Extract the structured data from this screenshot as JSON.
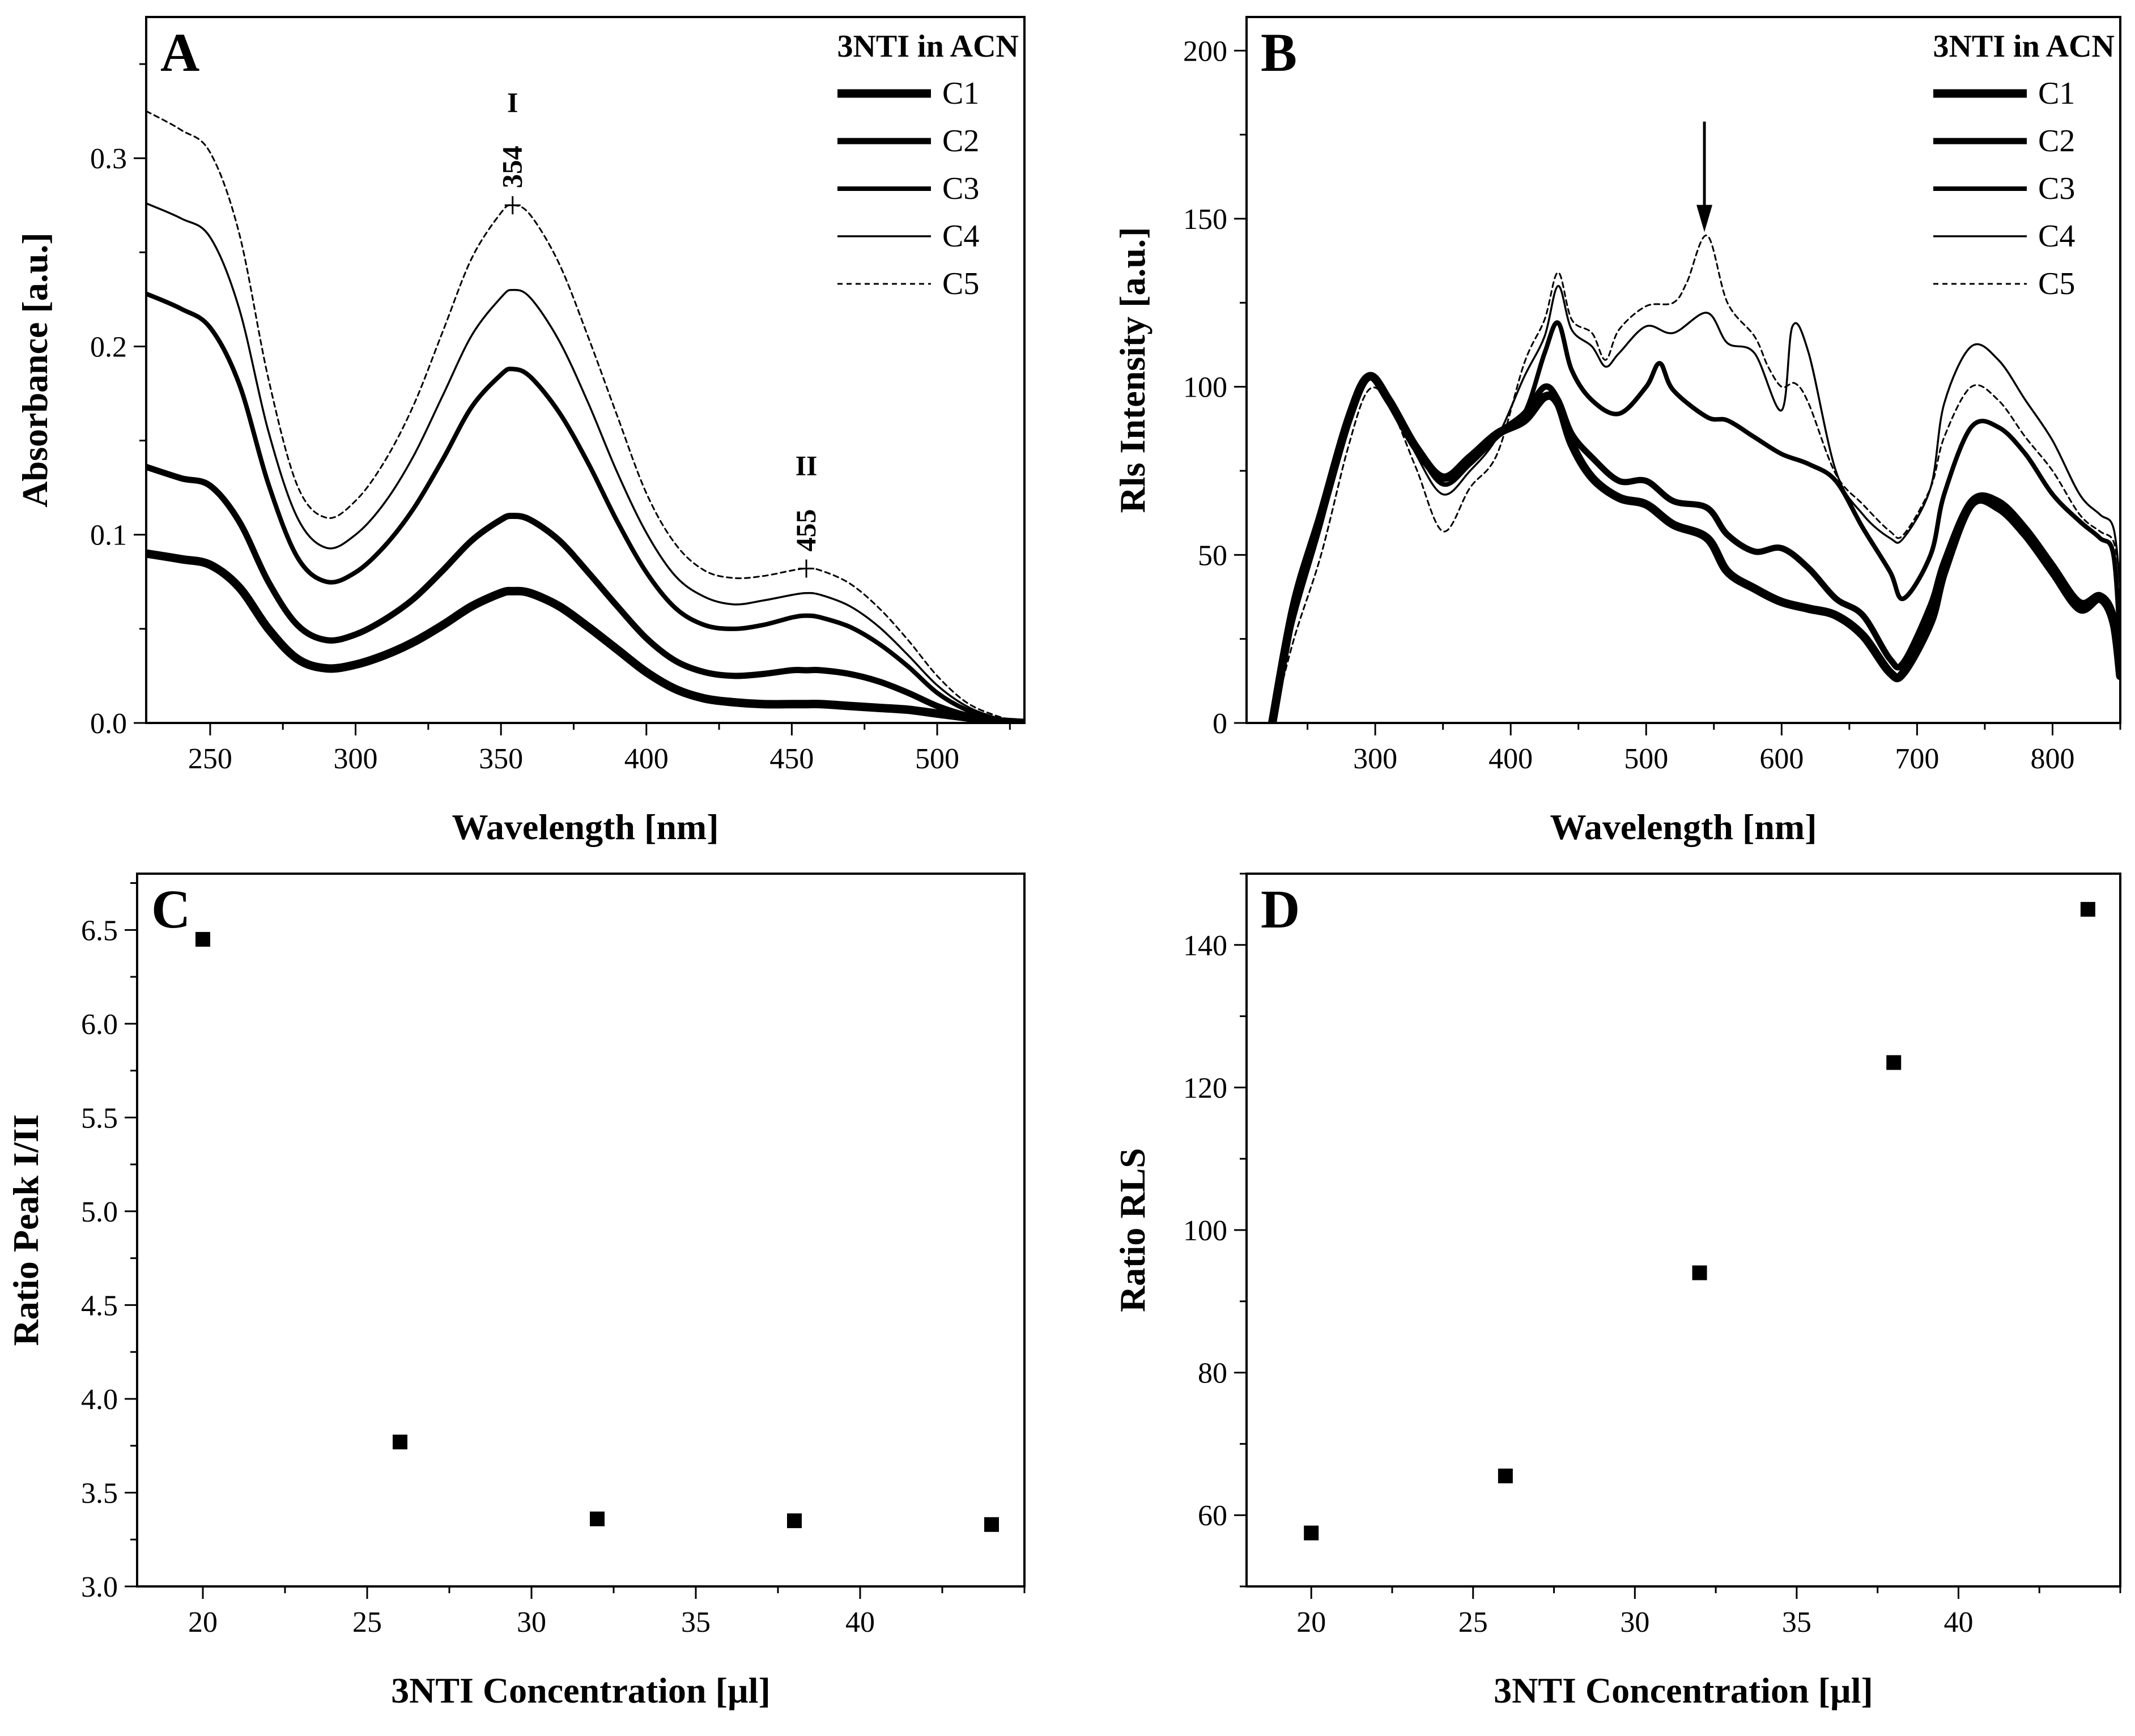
{
  "chart_data": [
    {
      "panel": "A",
      "type": "line",
      "xlabel": "Wavelength [nm]",
      "ylabel": "Absorbance [a.u.]",
      "xlim": [
        228,
        530
      ],
      "ylim": [
        0,
        0.375
      ],
      "xticks": [
        250,
        300,
        350,
        400,
        450,
        500
      ],
      "yticks": [
        0.0,
        0.1,
        0.2,
        0.3
      ],
      "ytick_labels": [
        "0.0",
        "0.1",
        "0.2",
        "0.3"
      ],
      "legend_title": "3NTI in ACN",
      "legend_position": "top-right",
      "series": [
        {
          "name": "C1",
          "x": [
            228,
            240,
            250,
            260,
            270,
            280,
            290,
            300,
            310,
            320,
            330,
            340,
            350,
            354,
            360,
            370,
            380,
            390,
            400,
            410,
            420,
            430,
            440,
            450,
            455,
            460,
            470,
            480,
            490,
            500,
            510,
            520,
            530
          ],
          "y": [
            0.09,
            0.087,
            0.084,
            0.072,
            0.05,
            0.034,
            0.029,
            0.031,
            0.036,
            0.043,
            0.052,
            0.062,
            0.069,
            0.07,
            0.069,
            0.062,
            0.051,
            0.039,
            0.027,
            0.018,
            0.013,
            0.011,
            0.01,
            0.01,
            0.01,
            0.01,
            0.009,
            0.008,
            0.007,
            0.005,
            0.003,
            0.001,
            0.0
          ]
        },
        {
          "name": "C2",
          "x": [
            228,
            240,
            250,
            260,
            270,
            280,
            290,
            300,
            310,
            320,
            330,
            340,
            350,
            354,
            360,
            370,
            380,
            390,
            400,
            410,
            420,
            430,
            440,
            450,
            455,
            460,
            470,
            480,
            490,
            500,
            510,
            520,
            530
          ],
          "y": [
            0.136,
            0.13,
            0.126,
            0.107,
            0.075,
            0.052,
            0.044,
            0.047,
            0.055,
            0.066,
            0.081,
            0.097,
            0.108,
            0.11,
            0.108,
            0.097,
            0.08,
            0.062,
            0.045,
            0.033,
            0.027,
            0.025,
            0.026,
            0.028,
            0.028,
            0.028,
            0.026,
            0.022,
            0.016,
            0.009,
            0.004,
            0.001,
            0.0
          ]
        },
        {
          "name": "C3",
          "x": [
            228,
            240,
            250,
            260,
            270,
            280,
            290,
            300,
            310,
            320,
            330,
            340,
            350,
            354,
            360,
            370,
            380,
            390,
            400,
            410,
            420,
            430,
            440,
            450,
            455,
            460,
            470,
            480,
            490,
            500,
            510,
            520,
            530
          ],
          "y": [
            0.228,
            0.22,
            0.21,
            0.18,
            0.127,
            0.088,
            0.075,
            0.08,
            0.094,
            0.114,
            0.14,
            0.168,
            0.185,
            0.188,
            0.184,
            0.165,
            0.138,
            0.107,
            0.08,
            0.061,
            0.052,
            0.05,
            0.052,
            0.056,
            0.057,
            0.056,
            0.051,
            0.042,
            0.03,
            0.016,
            0.007,
            0.002,
            0.0
          ]
        },
        {
          "name": "C4",
          "x": [
            228,
            240,
            250,
            260,
            270,
            280,
            290,
            300,
            310,
            320,
            330,
            340,
            350,
            354,
            360,
            370,
            380,
            390,
            400,
            410,
            420,
            430,
            440,
            450,
            455,
            460,
            470,
            480,
            490,
            500,
            510,
            520,
            530
          ],
          "y": [
            0.276,
            0.268,
            0.258,
            0.22,
            0.155,
            0.109,
            0.093,
            0.1,
            0.117,
            0.142,
            0.174,
            0.206,
            0.226,
            0.23,
            0.226,
            0.203,
            0.17,
            0.133,
            0.101,
            0.078,
            0.067,
            0.063,
            0.065,
            0.068,
            0.069,
            0.068,
            0.062,
            0.051,
            0.036,
            0.02,
            0.009,
            0.003,
            0.0
          ]
        },
        {
          "name": "C5",
          "x": [
            228,
            240,
            250,
            260,
            270,
            280,
            290,
            300,
            310,
            320,
            330,
            340,
            350,
            354,
            360,
            370,
            380,
            390,
            400,
            410,
            420,
            430,
            440,
            450,
            455,
            460,
            470,
            480,
            490,
            500,
            510,
            520,
            530
          ],
          "y": [
            0.325,
            0.315,
            0.303,
            0.26,
            0.183,
            0.126,
            0.109,
            0.118,
            0.139,
            0.169,
            0.208,
            0.247,
            0.271,
            0.275,
            0.27,
            0.244,
            0.205,
            0.163,
            0.122,
            0.095,
            0.081,
            0.077,
            0.078,
            0.081,
            0.082,
            0.081,
            0.074,
            0.061,
            0.044,
            0.025,
            0.011,
            0.004,
            0.0
          ]
        }
      ],
      "annotations": [
        {
          "label": "I",
          "value": "354",
          "x": 354,
          "y": 0.275
        },
        {
          "label": "II",
          "value": "455",
          "x": 455,
          "y": 0.082
        }
      ]
    },
    {
      "panel": "B",
      "type": "line",
      "xlabel": "Wavelength [nm]",
      "ylabel": "Rls Intensity [a.u.]",
      "xlim": [
        205,
        850
      ],
      "ylim": [
        0,
        210
      ],
      "xticks": [
        300,
        400,
        500,
        600,
        700,
        800
      ],
      "yticks": [
        0,
        50,
        100,
        150,
        200
      ],
      "ytick_labels": [
        "0",
        "50",
        "100",
        "150",
        "200"
      ],
      "legend_title": "3NTI in ACN",
      "legend_position": "top-right",
      "arrow_at_x": 543,
      "series": [
        {
          "name": "C1",
          "x": [
            224,
            240,
            260,
            280,
            295,
            310,
            330,
            350,
            370,
            390,
            410,
            425,
            435,
            445,
            460,
            480,
            500,
            520,
            545,
            560,
            580,
            600,
            620,
            640,
            660,
            680,
            690,
            710,
            720,
            740,
            760,
            780,
            800,
            820,
            835,
            845,
            850
          ],
          "y": [
            0,
            35,
            62,
            90,
            103,
            96,
            82,
            73,
            79,
            86,
            90,
            97,
            95,
            83,
            73,
            67,
            65,
            59,
            55,
            45,
            40,
            36,
            34,
            32,
            26,
            15,
            15,
            30,
            45,
            65,
            64,
            56,
            45,
            34,
            37,
            30,
            14
          ]
        },
        {
          "name": "C2",
          "x": [
            224,
            240,
            260,
            280,
            295,
            310,
            330,
            350,
            370,
            390,
            410,
            425,
            435,
            445,
            460,
            480,
            500,
            520,
            545,
            560,
            580,
            600,
            620,
            640,
            660,
            680,
            690,
            710,
            720,
            740,
            760,
            780,
            800,
            820,
            835,
            845,
            850
          ],
          "y": [
            0,
            35,
            62,
            90,
            103,
            96,
            82,
            73,
            79,
            86,
            92,
            100,
            96,
            86,
            79,
            72,
            72,
            66,
            64,
            56,
            51,
            52,
            46,
            37,
            32,
            19,
            18,
            35,
            48,
            66,
            66,
            58,
            47,
            36,
            38,
            32,
            16
          ]
        },
        {
          "name": "C3",
          "x": [
            224,
            240,
            260,
            280,
            295,
            310,
            330,
            350,
            370,
            390,
            410,
            425,
            435,
            445,
            460,
            480,
            500,
            510,
            520,
            545,
            560,
            580,
            600,
            620,
            640,
            660,
            680,
            690,
            710,
            720,
            740,
            760,
            780,
            800,
            820,
            835,
            845,
            850
          ],
          "y": [
            0,
            35,
            62,
            90,
            103,
            96,
            82,
            71,
            77,
            85,
            92,
            110,
            119,
            105,
            96,
            92,
            100,
            107,
            99,
            91,
            90,
            85,
            80,
            77,
            72,
            58,
            45,
            37,
            50,
            68,
            88,
            88,
            80,
            68,
            60,
            55,
            50,
            22
          ]
        },
        {
          "name": "C4",
          "x": [
            224,
            240,
            260,
            280,
            295,
            310,
            330,
            350,
            370,
            390,
            410,
            425,
            435,
            445,
            460,
            470,
            480,
            500,
            520,
            545,
            560,
            580,
            600,
            608,
            620,
            640,
            660,
            680,
            690,
            710,
            720,
            740,
            760,
            780,
            800,
            820,
            835,
            845,
            850
          ],
          "y": [
            0,
            30,
            58,
            88,
            102,
            97,
            80,
            68,
            75,
            85,
            103,
            115,
            130,
            117,
            112,
            106,
            110,
            118,
            116,
            122,
            113,
            110,
            93,
            118,
            110,
            75,
            62,
            55,
            55,
            70,
            95,
            112,
            108,
            96,
            84,
            68,
            62,
            58,
            40
          ]
        },
        {
          "name": "C5",
          "x": [
            224,
            240,
            260,
            280,
            295,
            310,
            330,
            350,
            370,
            390,
            410,
            425,
            435,
            445,
            460,
            470,
            480,
            500,
            520,
            530,
            545,
            560,
            580,
            590,
            600,
            610,
            620,
            640,
            660,
            680,
            690,
            710,
            720,
            740,
            760,
            780,
            800,
            820,
            835,
            845,
            850
          ],
          "y": [
            0,
            25,
            50,
            82,
            99,
            95,
            76,
            57,
            70,
            80,
            107,
            120,
            134,
            120,
            116,
            108,
            117,
            124,
            125,
            131,
            145,
            125,
            115,
            106,
            100,
            101,
            95,
            74,
            65,
            57,
            56,
            70,
            85,
            100,
            96,
            85,
            75,
            62,
            57,
            54,
            42
          ]
        }
      ]
    },
    {
      "panel": "C",
      "type": "scatter",
      "xlabel": "3NTI Concentration [µl]",
      "ylabel": "Ratio Peak I/II",
      "xlim": [
        18,
        45
      ],
      "ylim": [
        3.0,
        6.8
      ],
      "xticks": [
        20,
        25,
        30,
        35,
        40
      ],
      "yticks": [
        3.0,
        3.5,
        4.0,
        4.5,
        5.0,
        5.5,
        6.0,
        6.5
      ],
      "ytick_labels": [
        "3.0",
        "3.5",
        "4.0",
        "4.5",
        "5.0",
        "5.5",
        "6.0",
        "6.5"
      ],
      "x": [
        20,
        26,
        32,
        38,
        44
      ],
      "y": [
        6.45,
        3.77,
        3.36,
        3.35,
        3.33
      ]
    },
    {
      "panel": "D",
      "type": "scatter",
      "xlabel": "3NTI Concentration [µl]",
      "ylabel": "Ratio RLS",
      "xlim": [
        18,
        45
      ],
      "ylim": [
        50,
        150
      ],
      "xticks": [
        20,
        25,
        30,
        35,
        40
      ],
      "yticks": [
        60,
        80,
        100,
        120,
        140
      ],
      "ytick_labels": [
        "60",
        "80",
        "100",
        "120",
        "140"
      ],
      "x": [
        20,
        26,
        32,
        38,
        44
      ],
      "y": [
        57.5,
        65.5,
        94,
        123.5,
        145
      ]
    }
  ]
}
